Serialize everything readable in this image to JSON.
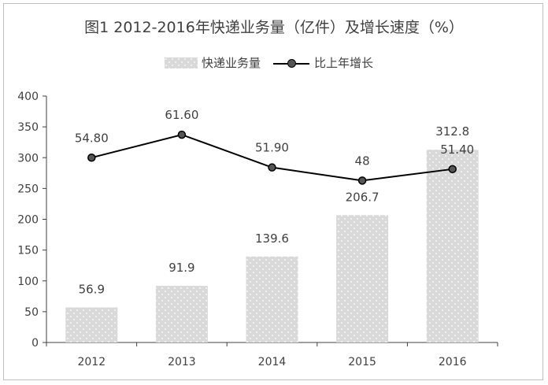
{
  "title": "图1 2012-2016年快递业务量（亿件）及增长速度（%）",
  "colors": {
    "bar": "#d9d9d9",
    "bar_dot": "#ffffff",
    "line": "#000000",
    "marker": "#555555",
    "axis": "#404040"
  },
  "legend": {
    "bar_label": "快递业务量",
    "line_label": "比上年增长"
  },
  "chart_data": {
    "type": "bar+line",
    "categories": [
      "2012",
      "2013",
      "2014",
      "2015",
      "2016"
    ],
    "series": [
      {
        "name": "快递业务量",
        "type": "bar",
        "values": [
          56.9,
          91.9,
          139.6,
          206.7,
          312.8
        ],
        "labels": [
          "56.9",
          "91.9",
          "139.6",
          "206.7",
          "312.8"
        ]
      },
      {
        "name": "比上年增长",
        "type": "line",
        "values": [
          54.8,
          61.6,
          51.9,
          48,
          51.4
        ],
        "labels": [
          "54.80",
          "61.60",
          "51.90",
          "48",
          "51.40"
        ]
      }
    ],
    "ylim": [
      0,
      400
    ],
    "yticks": [
      0,
      50,
      100,
      150,
      200,
      250,
      300,
      350,
      400
    ],
    "grid": false,
    "legend_position": "top"
  }
}
